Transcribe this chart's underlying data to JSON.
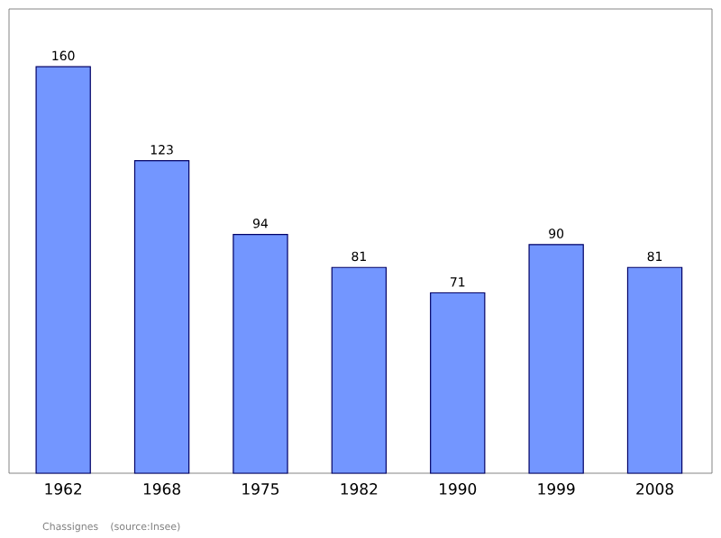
{
  "chart_data": {
    "type": "bar",
    "categories": [
      "1962",
      "1968",
      "1975",
      "1982",
      "1990",
      "1999",
      "2008"
    ],
    "values": [
      160,
      123,
      94,
      81,
      71,
      90,
      81
    ],
    "color": "#7396ff",
    "data_labels": true,
    "annotations": [
      "Chassignes",
      "(source:Insee)"
    ]
  }
}
